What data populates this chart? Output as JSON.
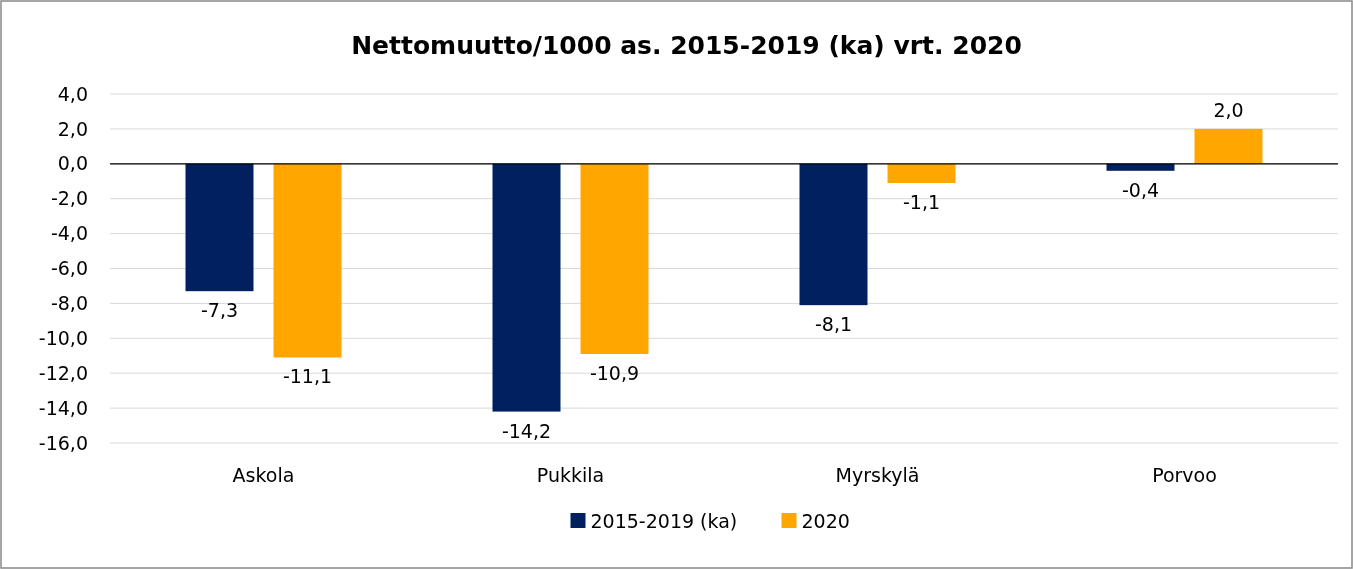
{
  "chart_data": {
    "type": "bar",
    "title": "Nettomuutto/1000 as. 2015-2019 (ka) vrt. 2020",
    "categories": [
      "Askola",
      "Pukkila",
      "Myrskylä",
      "Porvoo"
    ],
    "series": [
      {
        "name": "2015-2019 (ka)",
        "color": "#002060",
        "values": [
          -7.3,
          -14.2,
          -8.1,
          -0.4
        ],
        "value_labels": [
          "-7,3",
          "-14,2",
          "-8,1",
          "-0,4"
        ]
      },
      {
        "name": "2020",
        "color": "#ffa600",
        "values": [
          -11.1,
          -10.9,
          -1.1,
          2.0
        ],
        "value_labels": [
          "-11,1",
          "-10,9",
          "-1,1",
          "2,0"
        ]
      }
    ],
    "ylim": [
      -16,
      4
    ],
    "yticks": [
      {
        "value": 4,
        "label": "4,0"
      },
      {
        "value": 2,
        "label": "2,0"
      },
      {
        "value": 0,
        "label": "0,0"
      },
      {
        "value": -2,
        "label": "-2,0"
      },
      {
        "value": -4,
        "label": "-4,0"
      },
      {
        "value": -6,
        "label": "-6,0"
      },
      {
        "value": -8,
        "label": "-8,0"
      },
      {
        "value": -10,
        "label": "-10,0"
      },
      {
        "value": -12,
        "label": "-12,0"
      },
      {
        "value": -14,
        "label": "-14,0"
      },
      {
        "value": -16,
        "label": "-16,0"
      }
    ],
    "grid": "y",
    "legend": "bottom"
  }
}
